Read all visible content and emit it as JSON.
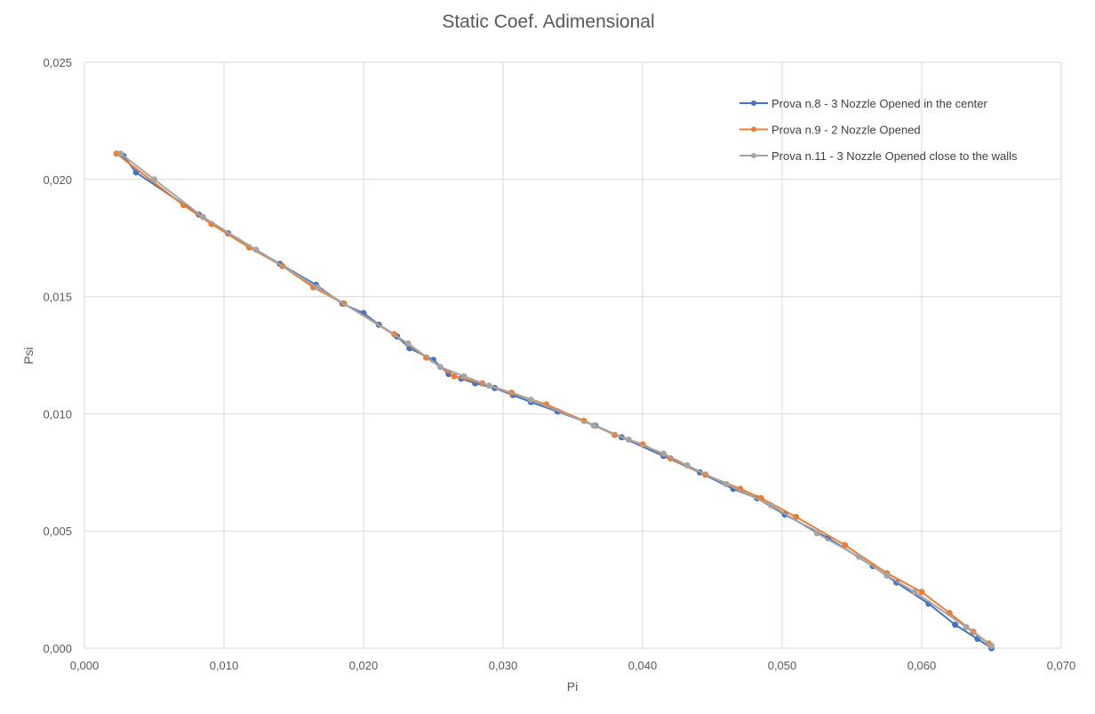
{
  "chart_data": {
    "type": "scatter",
    "title": "Static Coef. Adimensional",
    "xlabel": "Pi",
    "ylabel": "Psi",
    "xlim": [
      0.0,
      0.07
    ],
    "ylim": [
      0.0,
      0.025
    ],
    "x_ticks": [
      "0,000",
      "0,010",
      "0,020",
      "0,030",
      "0,040",
      "0,050",
      "0,060",
      "0,070"
    ],
    "y_ticks": [
      "0,000",
      "0,005",
      "0,010",
      "0,015",
      "0,020",
      "0,025"
    ],
    "grid": true,
    "legend_position": "top-right",
    "series": [
      {
        "name": "Prova n.8 - 3 Nozzle Opened in the center",
        "color": "#4472c4",
        "x": [
          0.0028,
          0.0037,
          0.0082,
          0.0103,
          0.014,
          0.0166,
          0.0185,
          0.02,
          0.0211,
          0.0224,
          0.0233,
          0.025,
          0.0261,
          0.027,
          0.028,
          0.0294,
          0.0307,
          0.032,
          0.0339,
          0.0366,
          0.0385,
          0.0415,
          0.0441,
          0.0465,
          0.0482,
          0.0502,
          0.0533,
          0.0565,
          0.0582,
          0.0605,
          0.0624,
          0.064,
          0.065
        ],
        "y": [
          0.021,
          0.0203,
          0.0185,
          0.0177,
          0.0164,
          0.0155,
          0.0147,
          0.0143,
          0.0138,
          0.0133,
          0.0128,
          0.0123,
          0.0117,
          0.0115,
          0.0113,
          0.0111,
          0.0108,
          0.0105,
          0.0101,
          0.0095,
          0.009,
          0.0082,
          0.0075,
          0.0068,
          0.0064,
          0.0057,
          0.0047,
          0.0035,
          0.0028,
          0.0019,
          0.001,
          0.0004,
          0.0
        ]
      },
      {
        "name": "Prova n.9 - 2 Nozzle Opened",
        "color": "#ed7d31",
        "x": [
          0.0023,
          0.0071,
          0.0091,
          0.0118,
          0.0142,
          0.0164,
          0.0186,
          0.0222,
          0.0245,
          0.0265,
          0.0285,
          0.0306,
          0.0331,
          0.0358,
          0.038,
          0.04,
          0.042,
          0.0445,
          0.047,
          0.0485,
          0.051,
          0.0545,
          0.0575,
          0.06,
          0.062,
          0.0637,
          0.0648
        ],
        "y": [
          0.0211,
          0.0189,
          0.0181,
          0.0171,
          0.0163,
          0.0154,
          0.0147,
          0.0134,
          0.0124,
          0.0116,
          0.0113,
          0.0109,
          0.0104,
          0.0097,
          0.0091,
          0.0087,
          0.0081,
          0.0074,
          0.0068,
          0.0064,
          0.0056,
          0.0044,
          0.0032,
          0.0024,
          0.0015,
          0.0007,
          0.0002
        ]
      },
      {
        "name": "Prova n.11 - 3 Nozzle Opened close to the walls",
        "color": "#a5a5a5",
        "x": [
          0.0026,
          0.005,
          0.0085,
          0.0123,
          0.0167,
          0.0232,
          0.0255,
          0.0272,
          0.029,
          0.032,
          0.0365,
          0.039,
          0.0415,
          0.0432,
          0.046,
          0.0492,
          0.0525,
          0.0555,
          0.0575,
          0.0595,
          0.0632,
          0.065
        ],
        "y": [
          0.0211,
          0.02,
          0.0184,
          0.017,
          0.0154,
          0.013,
          0.012,
          0.0116,
          0.0112,
          0.0106,
          0.0095,
          0.0089,
          0.0083,
          0.0078,
          0.007,
          0.0061,
          0.0049,
          0.0039,
          0.0031,
          0.0024,
          0.0009,
          0.0001
        ]
      }
    ]
  }
}
